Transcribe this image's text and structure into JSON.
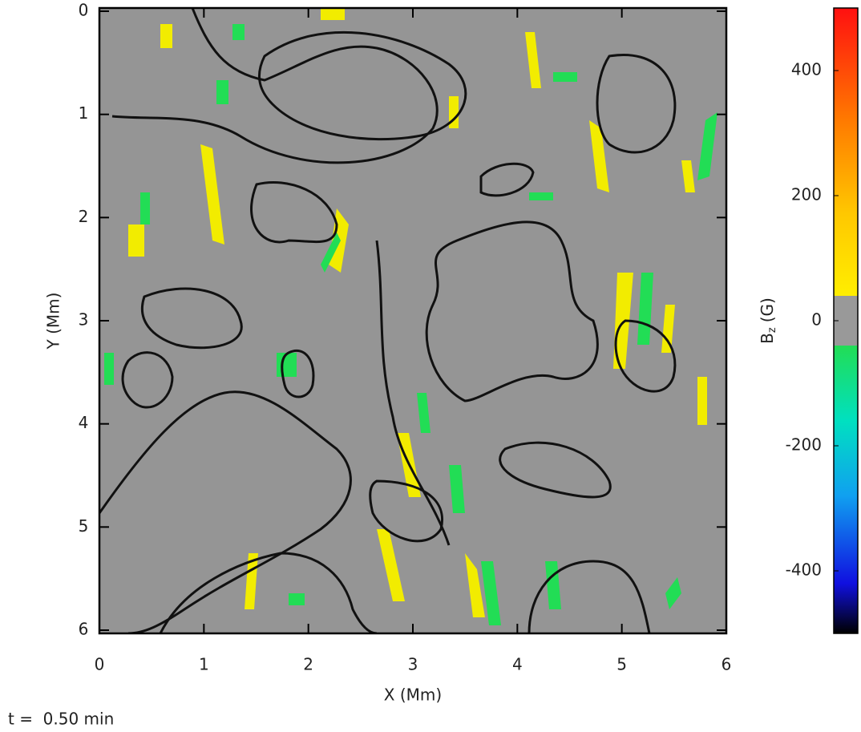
{
  "chart_data": {
    "type": "heatmap",
    "xlabel": "X (Mm)",
    "ylabel": "Y (Mm)",
    "xlim": [
      0,
      6
    ],
    "xticks": [
      0,
      1,
      2,
      3,
      4,
      5,
      6
    ],
    "ylim": [
      0,
      6
    ],
    "yticks": [
      0,
      1,
      2,
      3,
      4,
      5,
      6
    ],
    "y_inverted": true,
    "colorbar_label": {
      "base": "B",
      "subscript": "z",
      "unit": "(G)"
    },
    "clim": [
      -500,
      500
    ],
    "cticks": [
      -400,
      -200,
      0,
      200,
      400
    ],
    "annotation": "t =  0.50 min"
  }
}
